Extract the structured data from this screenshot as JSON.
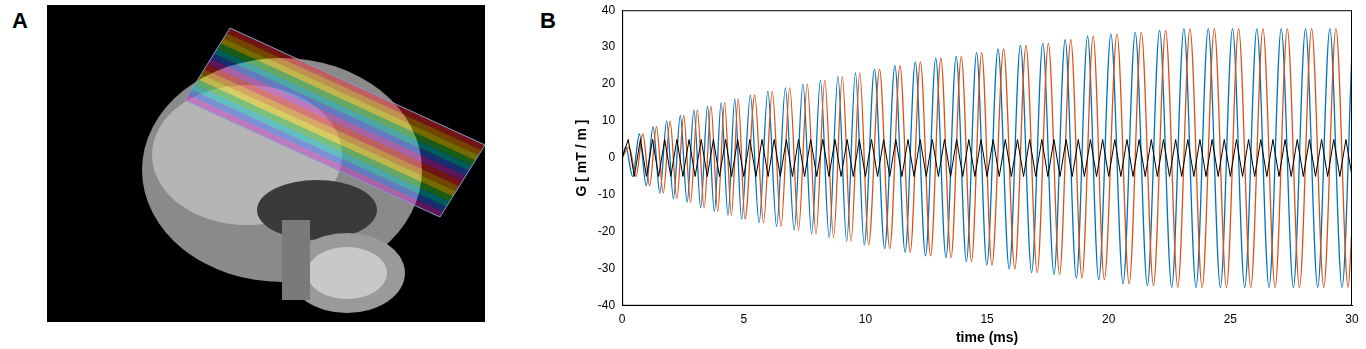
{
  "panel_labels": [
    "A",
    "B"
  ],
  "chart_data": {
    "type": "line",
    "x_label": "time (ms)",
    "y_label": "G [ mT / m ]",
    "xlim": [
      0,
      30
    ],
    "xticks": [
      0,
      5,
      10,
      15,
      20,
      25,
      30
    ],
    "ylim": [
      -40,
      40
    ],
    "yticks": [
      -40,
      -30,
      -20,
      -10,
      0,
      10,
      20,
      30,
      40
    ],
    "grid": false,
    "series": [
      {
        "color": "#0072BD",
        "x": [
          0,
          0.15,
          0.43,
          0.71,
          0.99,
          1.27,
          1.55,
          1.83,
          2.11,
          2.39,
          2.67,
          2.95,
          3.23,
          3.51,
          3.79,
          4.07,
          4.35,
          4.63,
          4.91,
          5.27,
          5.63,
          5.99,
          6.35,
          6.71,
          7.07,
          7.43,
          7.79,
          8.15,
          8.51,
          8.87,
          9.23,
          9.59,
          9.95,
          10.37,
          10.79,
          11.21,
          11.63,
          12.05,
          12.47,
          12.89,
          13.31,
          13.73,
          14.15,
          14.57,
          14.99,
          15.45,
          15.91,
          16.37,
          16.83,
          17.29,
          17.75,
          18.21,
          18.67,
          19.13,
          19.59,
          20.09,
          20.59,
          21.09,
          21.59,
          22.09,
          22.59,
          23.09,
          23.59,
          24.09,
          24.59,
          25.09,
          25.59,
          26.09,
          26.59,
          27.09,
          27.59,
          28.09,
          28.59,
          29.09,
          29.59,
          30
        ],
        "values": [
          0,
          3,
          -5,
          6.5,
          -7.5,
          8.5,
          -9.5,
          10,
          -11,
          11.5,
          -12,
          13,
          -13.5,
          14,
          -14.5,
          15,
          -15.5,
          16,
          -16.5,
          17,
          -17.5,
          18,
          -18.5,
          19,
          -19.5,
          20,
          -20.5,
          21,
          -21.5,
          22,
          -22.5,
          23,
          -23.5,
          24,
          -24.5,
          25,
          -25.5,
          26,
          -26.5,
          27,
          -27,
          27.5,
          -28,
          28.5,
          -29,
          29.5,
          -30,
          30.5,
          -31,
          31,
          -31.5,
          32,
          -32.5,
          33,
          -33,
          33.5,
          -34,
          34,
          -34.5,
          34.5,
          -35,
          35,
          -35,
          35,
          -35,
          35,
          -35,
          35,
          -35,
          35,
          -35,
          35,
          -35,
          35,
          -35,
          29
        ]
      },
      {
        "color": "#D95319",
        "x": [
          0,
          0.29,
          0.57,
          0.85,
          1.13,
          1.41,
          1.69,
          1.97,
          2.25,
          2.53,
          2.81,
          3.09,
          3.37,
          3.65,
          3.93,
          4.21,
          4.49,
          4.77,
          5.05,
          5.45,
          5.81,
          6.17,
          6.53,
          6.89,
          7.25,
          7.61,
          7.97,
          8.33,
          8.69,
          9.05,
          9.41,
          9.77,
          10.13,
          10.58,
          11.0,
          11.42,
          11.84,
          12.26,
          12.68,
          13.1,
          13.52,
          13.94,
          14.36,
          14.78,
          15.2,
          15.68,
          16.14,
          16.6,
          17.06,
          17.52,
          17.98,
          18.44,
          18.9,
          19.36,
          19.82,
          20.34,
          20.84,
          21.34,
          21.84,
          22.34,
          22.84,
          23.34,
          23.84,
          24.34,
          24.84,
          25.34,
          25.84,
          26.34,
          26.84,
          27.34,
          27.84,
          28.34,
          28.84,
          29.34,
          29.84,
          30
        ],
        "values": [
          0,
          3,
          -5,
          6.5,
          -7.5,
          8.5,
          -9.5,
          10,
          -11,
          11.5,
          -12,
          13,
          -13.5,
          14,
          -14.5,
          15,
          -15.5,
          16,
          -16.5,
          17,
          -17.5,
          18,
          -18.5,
          19,
          -19.5,
          20,
          -20.5,
          21,
          -21.5,
          22,
          -22.5,
          23,
          -23.5,
          24,
          -24.5,
          25,
          -25.5,
          26,
          -26.5,
          27,
          -27,
          27.5,
          -28,
          28.5,
          -29,
          29.5,
          -30,
          30.5,
          -31,
          31,
          -31.5,
          32,
          -32.5,
          33,
          -33,
          33.5,
          -34,
          34,
          -34.5,
          34.5,
          -35,
          35,
          -35,
          35,
          -35,
          35,
          -35,
          35,
          -35,
          35,
          -35,
          35,
          -35,
          35,
          -35,
          -19
        ]
      },
      {
        "color": "#000000",
        "x": [
          0,
          0.25,
          0.5,
          0.75,
          1,
          1.25,
          1.5,
          1.75,
          2,
          2.25,
          2.5,
          2.75,
          3,
          3.25,
          3.5,
          3.75,
          4,
          4.25,
          4.5,
          4.75,
          5,
          5.25,
          5.5,
          5.75,
          6,
          6.25,
          6.5,
          6.75,
          7,
          7.25,
          7.5,
          7.75,
          8,
          8.25,
          8.5,
          8.75,
          9,
          9.25,
          9.5,
          9.75,
          10,
          10.25,
          10.5,
          10.75,
          11,
          11.25,
          11.5,
          11.75,
          12,
          12.25,
          12.5,
          12.75,
          13,
          13.25,
          13.5,
          13.75,
          14,
          14.25,
          14.5,
          14.75,
          15,
          15.25,
          15.5,
          15.75,
          16,
          16.25,
          16.5,
          16.75,
          17,
          17.25,
          17.5,
          17.75,
          18,
          18.25,
          18.5,
          18.75,
          19,
          19.25,
          19.5,
          19.75,
          20,
          20.25,
          20.5,
          20.75,
          21,
          21.25,
          21.5,
          21.75,
          22,
          22.25,
          22.5,
          22.75,
          23,
          23.25,
          23.5,
          23.75,
          24,
          24.25,
          24.5,
          24.75,
          25,
          25.25,
          25.5,
          25.75,
          26,
          26.25,
          26.5,
          26.75,
          27,
          27.25,
          27.5,
          27.75,
          28,
          28.25,
          28.5,
          28.75,
          29,
          29.25,
          29.5,
          29.75,
          30
        ],
        "values": [
          0,
          5,
          -5,
          5,
          -5,
          5,
          -5,
          5,
          -5,
          5,
          -5,
          5,
          -5,
          5,
          -5,
          5,
          -5,
          5,
          -5,
          5,
          -5,
          5,
          -5,
          5,
          -5,
          5,
          -5,
          5,
          -5,
          5,
          -5,
          5,
          -5,
          5,
          -5,
          5,
          -5,
          5,
          -5,
          5,
          -5,
          5,
          -5,
          5,
          -5,
          5,
          -5,
          5,
          -5,
          5,
          -5,
          5,
          -5,
          5,
          -5,
          5,
          -5,
          5,
          -5,
          5,
          -5,
          5,
          -5,
          5,
          -5,
          5,
          -5,
          5,
          -5,
          5,
          -5,
          5,
          -5,
          5,
          -5,
          5,
          -5,
          5,
          -5,
          5,
          -5,
          5,
          -5,
          5,
          -5,
          5,
          -5,
          5,
          -5,
          5,
          -5,
          5,
          -5,
          5,
          -5,
          5,
          -5,
          5,
          -5,
          5,
          -5,
          5,
          -5,
          5,
          -5,
          5,
          -5,
          5,
          -5,
          5,
          -5,
          5,
          -5,
          5,
          -5,
          5,
          -5,
          5,
          -5,
          5,
          -5
        ]
      }
    ]
  }
}
